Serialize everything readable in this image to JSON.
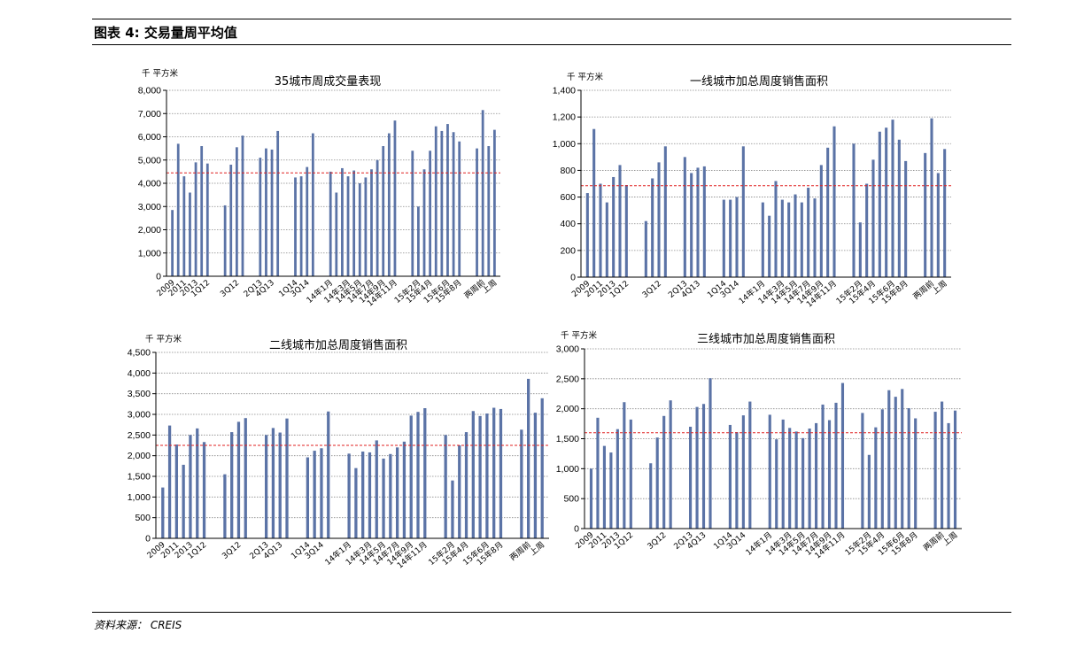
{
  "figure": {
    "title": "图表 4:  交易量周平均值",
    "source": "资料来源： CREIS"
  },
  "style": {
    "bar_color": "#5b73a6",
    "avg_line_color": "#e02020",
    "grid_color": "#888888"
  },
  "chart_data": [
    {
      "type": "bar",
      "title": "35城市周成交量表现",
      "unit": "千 平方米",
      "ylim": [
        0,
        8000
      ],
      "yticks": [
        0,
        1000,
        2000,
        3000,
        4000,
        5000,
        6000,
        7000,
        8000
      ],
      "ytick_labels": [
        "0",
        "1,000",
        "2,000",
        "3,000",
        "4,000",
        "5,000",
        "6,000",
        "7,000",
        "8,000"
      ],
      "average": 4450,
      "x_labels": [
        "2009",
        "2011",
        "2013",
        "1Q12",
        "3Q12",
        "2Q13",
        "4Q13",
        "1Q14",
        "3Q14",
        "14年1月",
        "14年3月",
        "14年5月",
        "14年7月",
        "14年9月",
        "14年11月",
        "15年2月",
        "15年4月",
        "15年6月",
        "15年8月",
        "两周前",
        "上周"
      ],
      "groups": [
        [
          2850,
          5700,
          4300,
          3600,
          4900,
          5600,
          4850
        ],
        [
          3050,
          4800,
          5550,
          6050
        ],
        [
          5100,
          5500,
          5450,
          6250
        ],
        [
          4250,
          4300,
          4700,
          6150
        ],
        [
          4500,
          3600,
          4650,
          4300,
          4550,
          4000,
          4250,
          4600,
          5000,
          5600,
          6150,
          6700
        ],
        [
          5400,
          3000,
          4600,
          5400,
          6450,
          6250,
          6550,
          6200,
          5800
        ],
        [
          5500,
          7150,
          5600,
          6300
        ]
      ]
    },
    {
      "type": "bar",
      "title": "一线城市加总周度销售面积",
      "unit": "千 平方米",
      "ylim": [
        0,
        1400
      ],
      "yticks": [
        0,
        200,
        400,
        600,
        800,
        1000,
        1200,
        1400
      ],
      "ytick_labels": [
        "0",
        "200",
        "400",
        "600",
        "800",
        "1,000",
        "1,200",
        "1,400"
      ],
      "average": 685,
      "x_labels": [
        "2009",
        "2011",
        "2013",
        "1Q12",
        "3Q12",
        "2Q13",
        "4Q13",
        "1Q14",
        "3Q14",
        "14年1月",
        "14年3月",
        "14年5月",
        "14年7月",
        "14年9月",
        "14年11月",
        "15年2月",
        "15年4月",
        "15年6月",
        "15年8月",
        "两周前",
        "上周"
      ],
      "groups": [
        [
          630,
          1110,
          700,
          560,
          750,
          840,
          690
        ],
        [
          420,
          740,
          860,
          980
        ],
        [
          900,
          780,
          820,
          830
        ],
        [
          580,
          580,
          600,
          980
        ],
        [
          560,
          460,
          720,
          580,
          560,
          620,
          560,
          670,
          590,
          840,
          970,
          1130
        ],
        [
          1000,
          410,
          700,
          880,
          1090,
          1120,
          1180,
          1030,
          870
        ],
        [
          930,
          1190,
          780,
          960
        ]
      ]
    },
    {
      "type": "bar",
      "title": "二线城市加总周度销售面积",
      "unit": "千 平方米",
      "ylim": [
        0,
        4500
      ],
      "yticks": [
        0,
        500,
        1000,
        1500,
        2000,
        2500,
        3000,
        3500,
        4000,
        4500
      ],
      "ytick_labels": [
        "0",
        "500",
        "1,000",
        "1,500",
        "2,000",
        "2,500",
        "3,000",
        "3,500",
        "4,000",
        "4,500"
      ],
      "average": 2250,
      "x_labels": [
        "2009",
        "2011",
        "2013",
        "1Q12",
        "3Q12",
        "2Q13",
        "4Q13",
        "1Q14",
        "3Q14",
        "14年1月",
        "14年3月",
        "14年5月",
        "14年7月",
        "14年9月",
        "14年11月",
        "15年2月",
        "15年4月",
        "15年6月",
        "15年8月",
        "两周前",
        "上周"
      ],
      "groups": [
        [
          1230,
          2730,
          2270,
          1780,
          2500,
          2660,
          2330
        ],
        [
          1550,
          2570,
          2820,
          2910
        ],
        [
          2500,
          2670,
          2560,
          2900
        ],
        [
          1960,
          2120,
          2180,
          3070
        ],
        [
          2050,
          1700,
          2100,
          2080,
          2370,
          1930,
          2040,
          2200,
          2340,
          2970,
          3060,
          3150
        ],
        [
          2500,
          1400,
          2250,
          2570,
          3080,
          2960,
          3020,
          3160,
          3130
        ],
        [
          2630,
          3860,
          3040,
          3390
        ]
      ]
    },
    {
      "type": "bar",
      "title": "三线城市加总周度销售面积",
      "unit": "千 平方米",
      "ylim": [
        0,
        3000
      ],
      "yticks": [
        0,
        500,
        1000,
        1500,
        2000,
        2500,
        3000
      ],
      "ytick_labels": [
        "0",
        "500",
        "1,000",
        "1,500",
        "2,000",
        "2,500",
        "3,000"
      ],
      "average": 1600,
      "x_labels": [
        "2009",
        "2011",
        "2013",
        "1Q12",
        "3Q12",
        "2Q13",
        "4Q13",
        "1Q14",
        "3Q14",
        "14年1月",
        "14年3月",
        "14年5月",
        "14年7月",
        "14年9月",
        "14年11月",
        "15年2月",
        "15年4月",
        "15年6月",
        "15年8月",
        "两周前",
        "上周"
      ],
      "groups": [
        [
          1000,
          1850,
          1380,
          1270,
          1660,
          2110,
          1820
        ],
        [
          1090,
          1520,
          1880,
          2140
        ],
        [
          1700,
          2030,
          2080,
          2510
        ],
        [
          1730,
          1610,
          1890,
          2120
        ],
        [
          1900,
          1490,
          1820,
          1680,
          1620,
          1510,
          1670,
          1760,
          2070,
          1810,
          2100,
          2430
        ],
        [
          1930,
          1230,
          1690,
          1990,
          2310,
          2200,
          2330,
          2010,
          1840
        ],
        [
          1950,
          2120,
          1760,
          1970
        ]
      ]
    }
  ]
}
